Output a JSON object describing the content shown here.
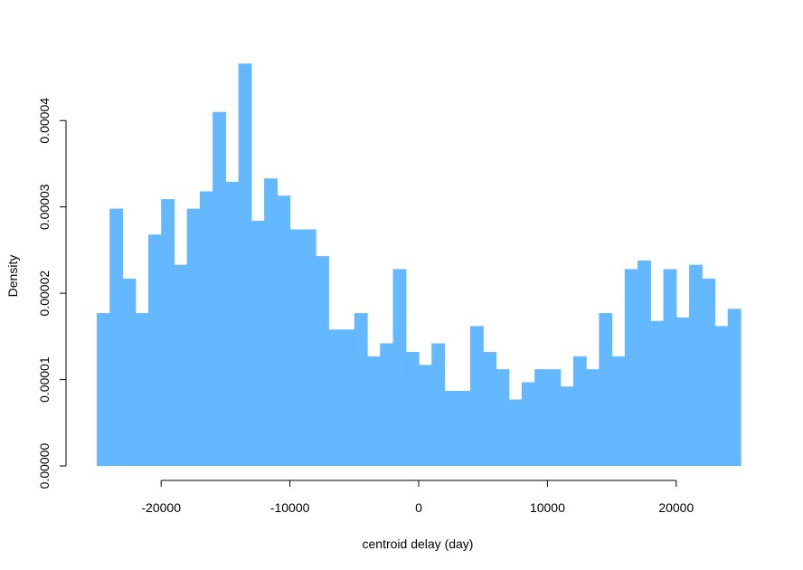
{
  "chart_data": {
    "type": "bar",
    "title": "",
    "xlabel": "centroid delay (day)",
    "ylabel": "Density",
    "bar_color": "#63b8ff",
    "grid": false,
    "legend": "none",
    "bin_width": 1000,
    "x_start": -25000,
    "x_end": 25000,
    "xlim": [
      -25000,
      25000
    ],
    "ylim": [
      0,
      4.6e-05
    ],
    "x_ticks": [
      -20000,
      -10000,
      0,
      10000,
      20000
    ],
    "x_tick_labels": [
      "-20000",
      "-10000",
      "0",
      "10000",
      "20000"
    ],
    "y_ticks": [
      0,
      1e-05,
      2e-05,
      3e-05,
      4e-05
    ],
    "y_tick_labels": [
      "0.00000",
      "0.00001",
      "0.00002",
      "0.00003",
      "0.00004"
    ],
    "values": [
      1.77e-05,
      2.98e-05,
      2.17e-05,
      1.77e-05,
      2.68e-05,
      3.09e-05,
      2.33e-05,
      2.98e-05,
      3.18e-05,
      4.1e-05,
      3.29e-05,
      4.66e-05,
      2.84e-05,
      3.33e-05,
      3.13e-05,
      2.74e-05,
      2.74e-05,
      2.43e-05,
      1.58e-05,
      1.58e-05,
      1.77e-05,
      1.27e-05,
      1.42e-05,
      2.28e-05,
      1.32e-05,
      1.17e-05,
      1.42e-05,
      8.7e-06,
      8.7e-06,
      1.62e-05,
      1.32e-05,
      1.12e-05,
      7.7e-06,
      9.7e-06,
      1.12e-05,
      1.12e-05,
      9.2e-06,
      1.27e-05,
      1.12e-05,
      1.77e-05,
      1.27e-05,
      2.28e-05,
      2.38e-05,
      1.68e-05,
      2.28e-05,
      1.72e-05,
      2.33e-05,
      2.17e-05,
      1.62e-05,
      1.82e-05
    ]
  }
}
